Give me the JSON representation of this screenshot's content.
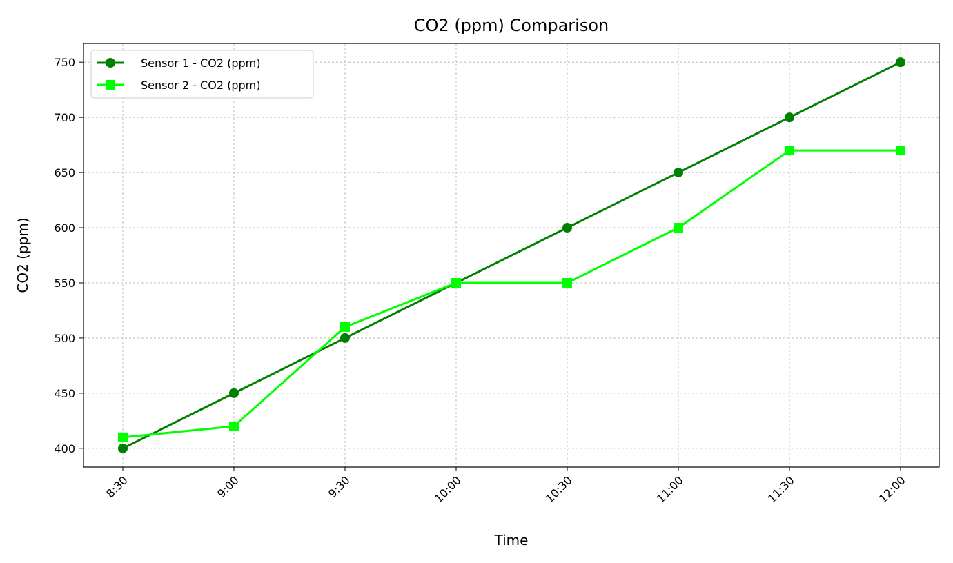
{
  "chart_data": {
    "type": "line",
    "title": "CO2 (ppm) Comparison",
    "xlabel": "Time",
    "ylabel": "CO2 (ppm)",
    "categories": [
      "8:30",
      "9:00",
      "9:30",
      "10:00",
      "10:30",
      "11:00",
      "11:30",
      "12:00"
    ],
    "ylim": [
      383,
      767
    ],
    "yticks": [
      400,
      450,
      500,
      550,
      600,
      650,
      700,
      750
    ],
    "grid": true,
    "legend_position": "top-left",
    "series": [
      {
        "name": "Sensor 1 - CO2 (ppm)",
        "marker": "circle",
        "color": "#008000",
        "values": [
          400,
          450,
          500,
          550,
          600,
          650,
          700,
          750
        ]
      },
      {
        "name": "Sensor 2 - CO2 (ppm)",
        "marker": "square",
        "color": "#00ff00",
        "values": [
          410,
          420,
          510,
          550,
          550,
          600,
          670,
          670
        ]
      }
    ]
  }
}
